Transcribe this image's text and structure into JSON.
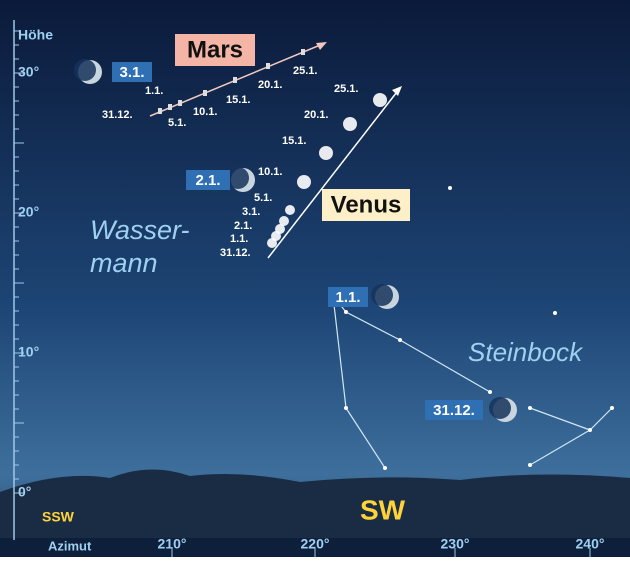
{
  "axes": {
    "y_title": "Höhe",
    "y_ticks": [
      "30°",
      "20°",
      "10°",
      "0°"
    ],
    "x_title": "Azimut",
    "x_ticks": [
      "210°",
      "220°",
      "230°",
      "240°"
    ],
    "directions": [
      "SSW",
      "SW"
    ]
  },
  "planets": {
    "mars": {
      "name": "Mars",
      "dates": [
        "31.12.",
        "1.1.",
        "5.1.",
        "10.1.",
        "15.1.",
        "20.1.",
        "25.1."
      ]
    },
    "venus": {
      "name": "Venus",
      "dates": [
        "31.12.",
        "1.1.",
        "2.1.",
        "3.1.",
        "5.1.",
        "10.1.",
        "15.1.",
        "20.1.",
        "25.1."
      ]
    }
  },
  "moon_dates": [
    "3.1.",
    "2.1.",
    "1.1.",
    "31.12."
  ],
  "constellations": {
    "aquarius": [
      "Wasser-",
      "mann"
    ],
    "capricorn": "Steinbock"
  }
}
